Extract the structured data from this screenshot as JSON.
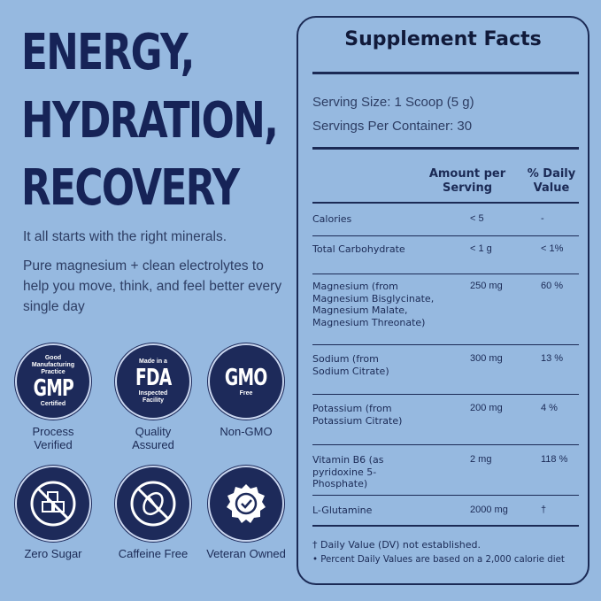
{
  "headline": [
    "ENERGY,",
    "HYDRATION,",
    "RECOVERY"
  ],
  "tagline": "It all starts with the right minerals.",
  "description": "Pure magnesium + clean electrolytes to help you move, think, and feel better every single day",
  "badges": [
    {
      "top": "Good Manufacturing Practice",
      "main": "GMP",
      "bottom": "Certified",
      "label": "Process Verified",
      "icon": "gmp-seal-icon"
    },
    {
      "top": "Made in a",
      "main": "FDA",
      "bottom": "Inspected Facility",
      "label": "Quality Assured",
      "icon": "fda-seal-icon"
    },
    {
      "top": "",
      "main": "GMO",
      "bottom": "Free",
      "label": "Non-GMO",
      "icon": "gmo-free-icon"
    },
    {
      "label": "Zero Sugar",
      "icon": "no-sugar-cubes-icon"
    },
    {
      "label": "Caffeine Free",
      "icon": "no-coffee-bean-icon"
    },
    {
      "label": "Veteran Owned",
      "icon": "check-seal-icon"
    }
  ],
  "facts": {
    "title": "Supplement Facts",
    "serving_size": "Serving Size: 1 Scoop (5 g)",
    "servings_per_container": "Servings Per Container: 30",
    "col_amount": "Amount per Serving",
    "col_dv": "% Daily Value",
    "rows": [
      {
        "name": "Calories",
        "amount": "< 5",
        "dv": "-"
      },
      {
        "name": "Total Carbohydrate",
        "amount": "< 1 g",
        "dv": "< 1%"
      },
      {
        "name": "Magnesium (from Magnesium Bisglycinate, Magnesium Malate, Magnesium Threonate)",
        "amount": "250 mg",
        "dv": "60 %"
      },
      {
        "name": "Sodium (from Sodium Citrate)",
        "amount": "300 mg",
        "dv": "13 %"
      },
      {
        "name": "Potassium (from Potassium Citrate)",
        "amount": "200 mg",
        "dv": "4 %"
      },
      {
        "name": "Vitamin B6 (as pyridoxine 5-Phosphate)",
        "amount": "2 mg",
        "dv": "118 %"
      },
      {
        "name": "L-Glutamine",
        "amount": "2000 mg",
        "dv": "†"
      }
    ],
    "footnote1": "† Daily Value (DV) not established.",
    "footnote2": "• Percent Daily Values are based on a 2,000 calorie diet"
  },
  "colors": {
    "background": "#96b9e0",
    "navy": "#1b2a55"
  }
}
